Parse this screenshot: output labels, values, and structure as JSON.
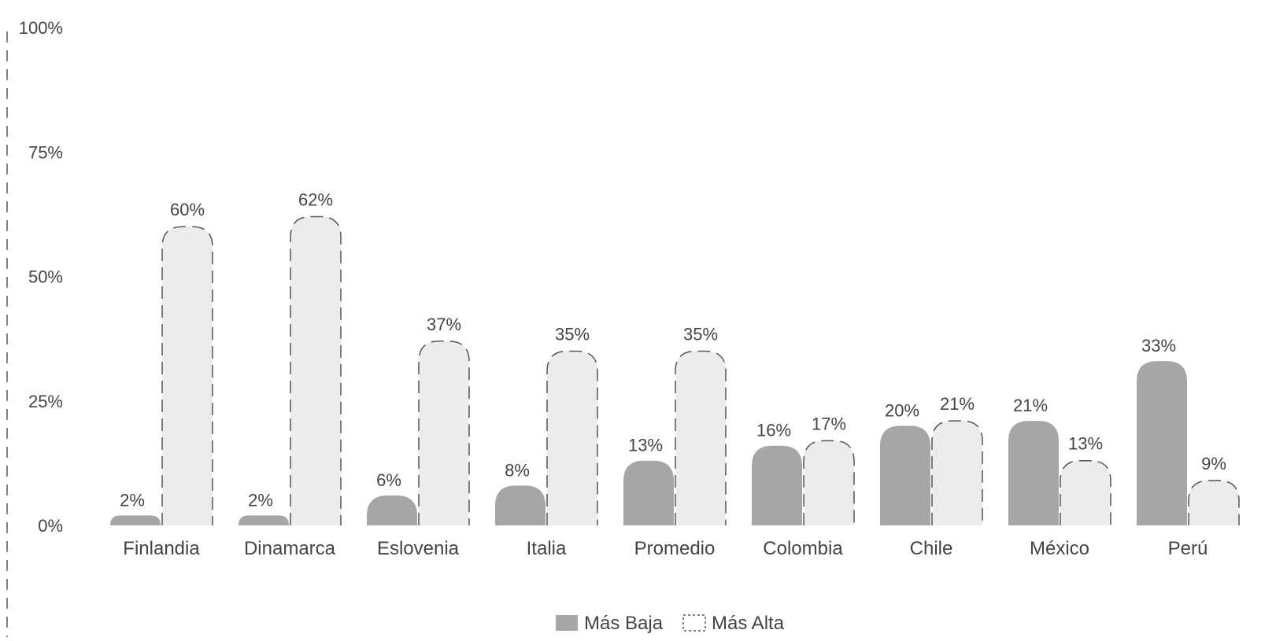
{
  "chart_data": {
    "type": "bar",
    "categories": [
      "Finlandia",
      "Dinamarca",
      "Eslovenia",
      "Italia",
      "Promedio",
      "Colombia",
      "Chile",
      "México",
      "Perú"
    ],
    "series": [
      {
        "name": "Más Baja",
        "values": [
          2,
          2,
          6,
          8,
          13,
          16,
          20,
          21,
          33
        ],
        "labels": [
          "2%",
          "2%",
          "6%",
          "8%",
          "13%",
          "16%",
          "20%",
          "21%",
          "33%"
        ],
        "color": "#a6a6a6"
      },
      {
        "name": "Más Alta",
        "values": [
          60,
          62,
          37,
          35,
          35,
          17,
          21,
          13,
          9
        ],
        "labels": [
          "60%",
          "62%",
          "37%",
          "35%",
          "35%",
          "17%",
          "21%",
          "13%",
          "9%"
        ],
        "color": "#ececec"
      }
    ],
    "ylim": [
      0,
      100
    ],
    "yticks": [
      "0%",
      "25%",
      "50%",
      "75%",
      "100%"
    ],
    "legend": "bottom-center",
    "grid": false
  }
}
